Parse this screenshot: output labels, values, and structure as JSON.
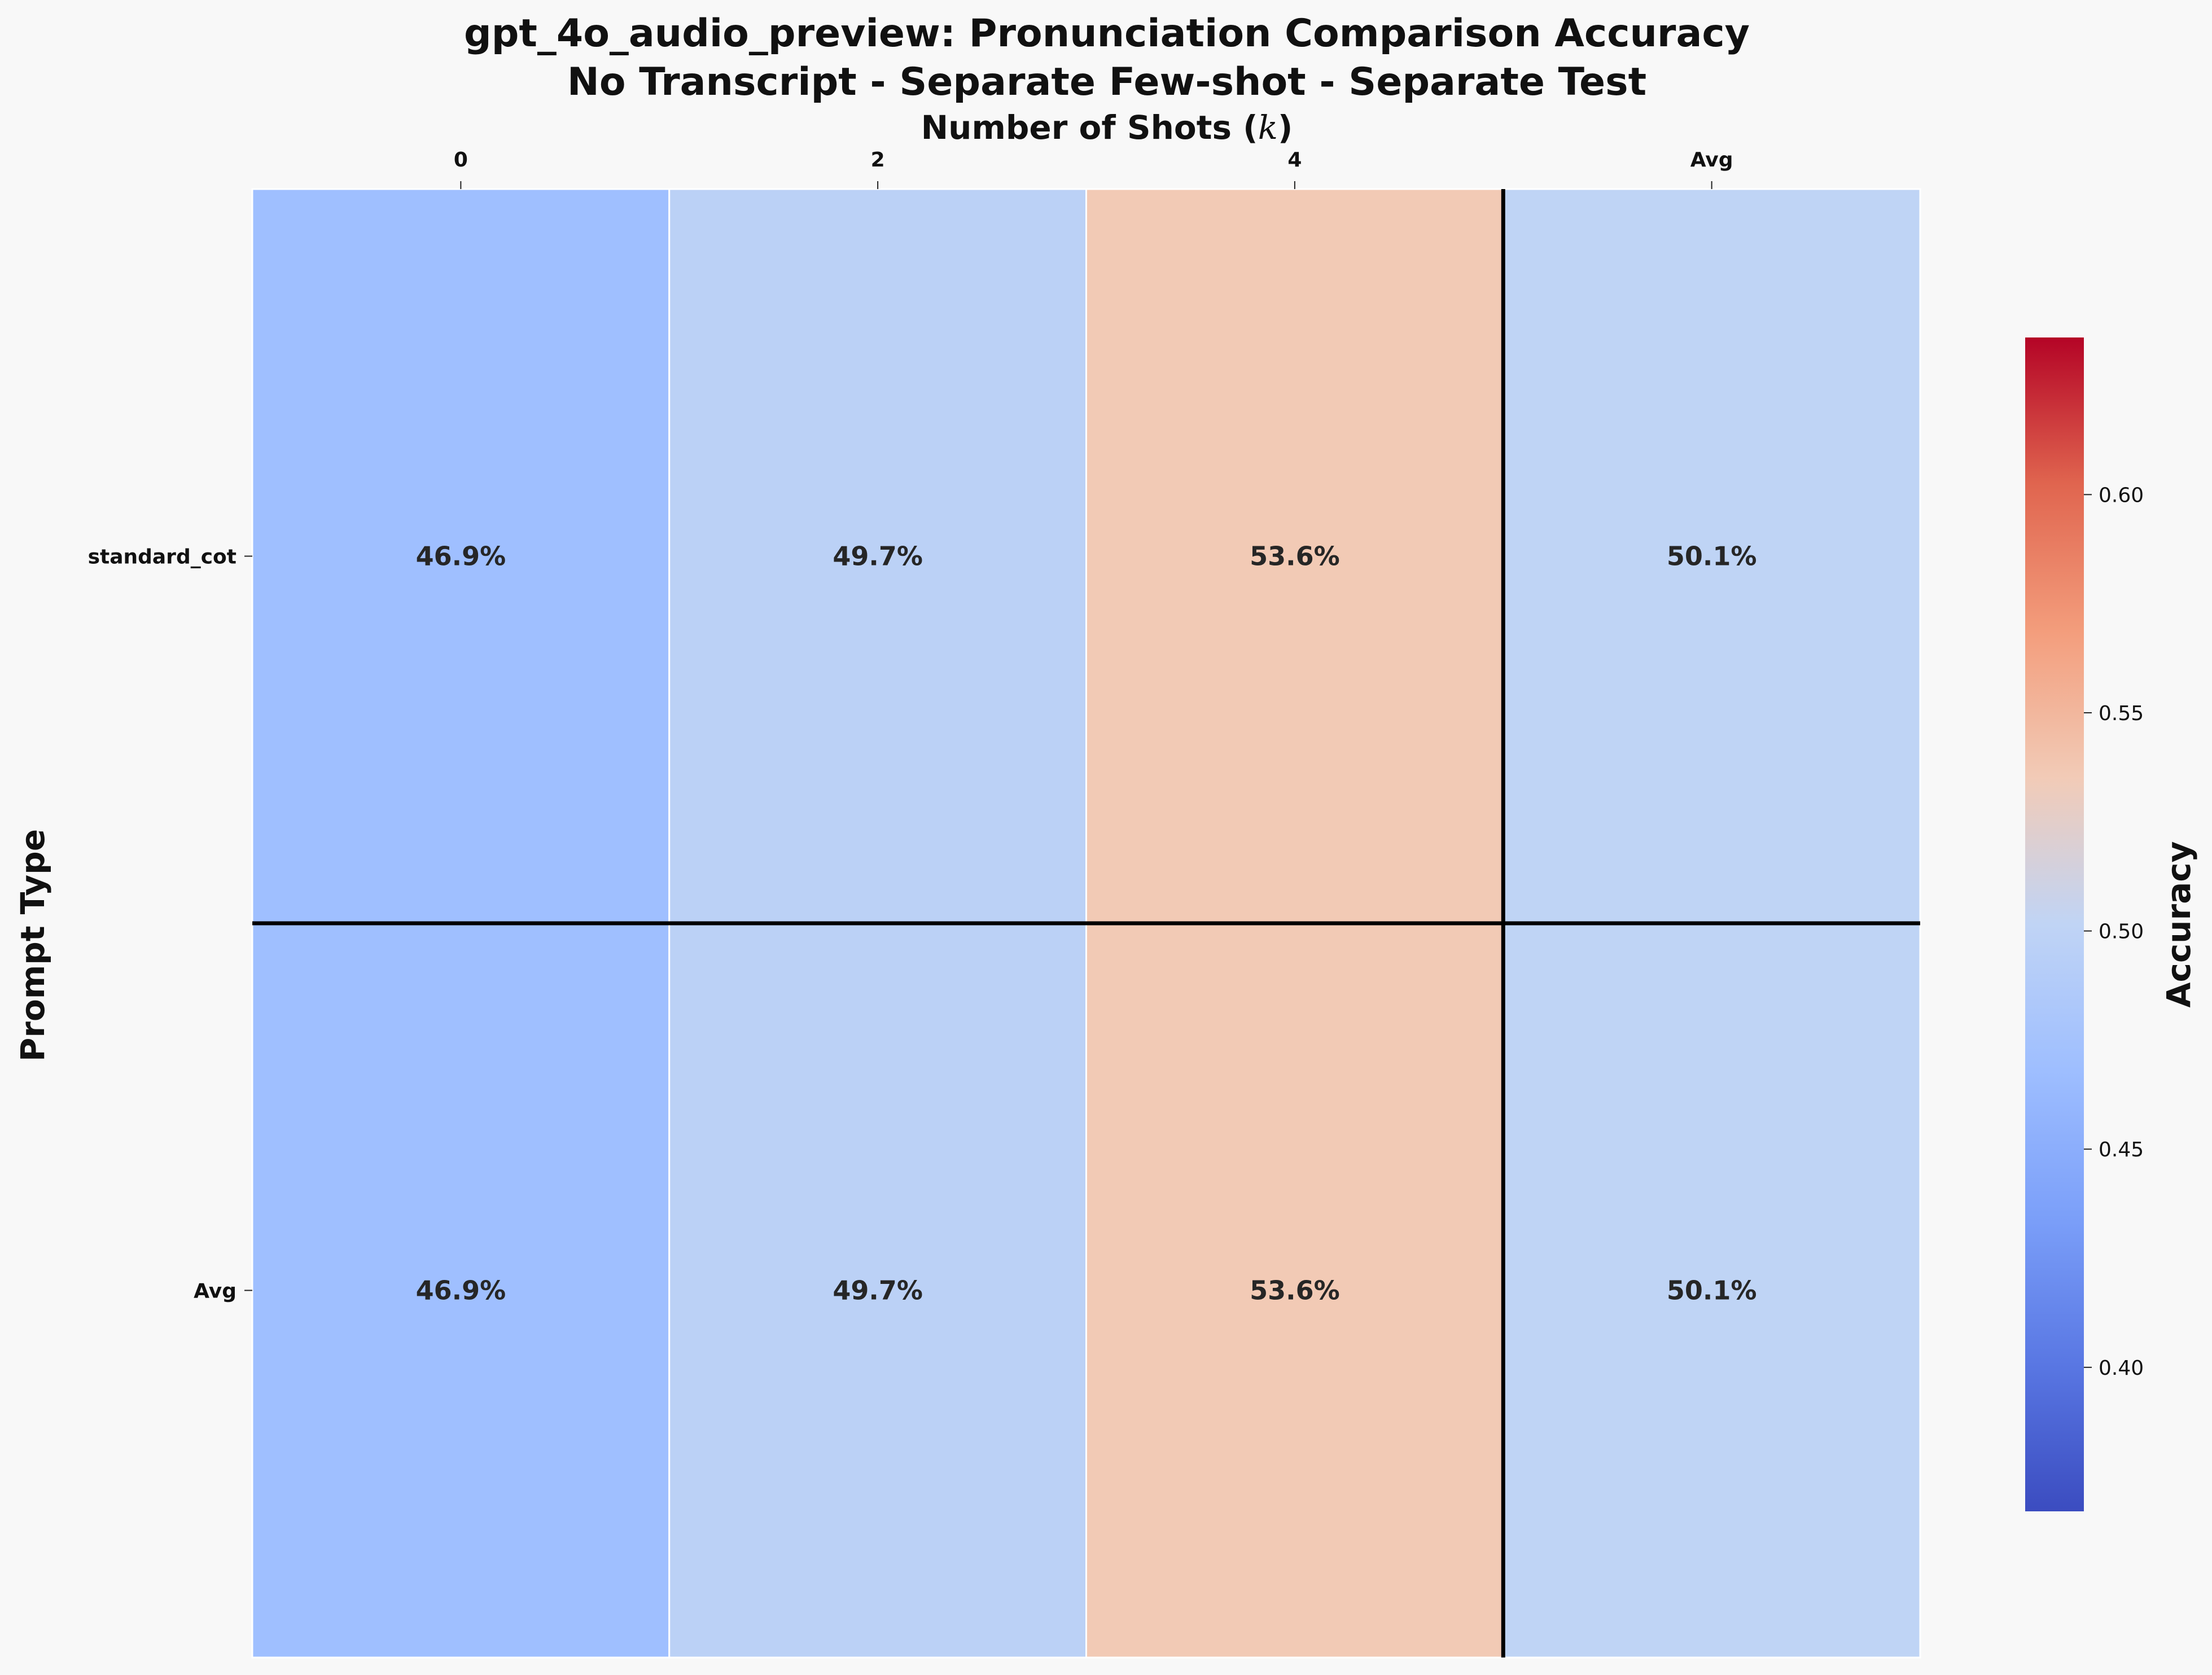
{
  "chart_data": {
    "type": "heatmap",
    "title": "gpt_4o_audio_preview: Pronunciation Comparison Accuracy",
    "subtitle": "No Transcript - Separate Few-shot - Separate Test",
    "xlabel": "Number of Shots (k)",
    "xlabel_prefix": "Number of Shots (",
    "xlabel_var": "k",
    "xlabel_suffix": ")",
    "ylabel": "Prompt Type",
    "x_categories": [
      "0",
      "2",
      "4",
      "Avg"
    ],
    "y_categories": [
      "standard_cot",
      "Avg"
    ],
    "values": [
      [
        0.469,
        0.497,
        0.536,
        0.501
      ],
      [
        0.469,
        0.497,
        0.536,
        0.501
      ]
    ],
    "cell_labels": [
      [
        "46.9%",
        "49.7%",
        "53.6%",
        "50.1%"
      ],
      [
        "46.9%",
        "49.7%",
        "53.6%",
        "50.1%"
      ]
    ],
    "colormap": "coolwarm",
    "colorbar": {
      "label": "Accuracy",
      "range": [
        0.367,
        0.636
      ],
      "ticks": [
        0.4,
        0.45,
        0.5,
        0.55,
        0.6
      ],
      "tick_labels": [
        "0.40",
        "0.45",
        "0.50",
        "0.55",
        "0.60"
      ]
    },
    "separator_after_col": 3,
    "separator_after_row": 1,
    "grid": false
  }
}
